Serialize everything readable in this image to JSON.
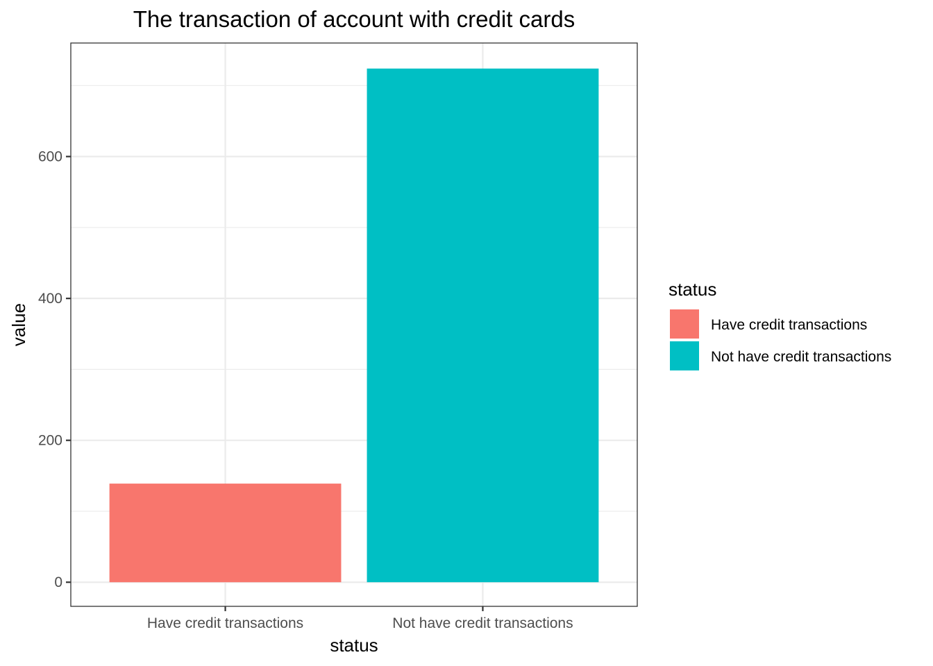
{
  "chart_data": {
    "type": "bar",
    "title": "The transaction of account with credit cards",
    "xlabel": "status",
    "ylabel": "value",
    "categories": [
      "Have credit transactions",
      "Not have credit transactions"
    ],
    "values": [
      139,
      724
    ],
    "colors": [
      "#F8766D",
      "#00BFC4"
    ],
    "ylim": [
      -34,
      760
    ],
    "yticks": [
      0,
      200,
      400,
      600
    ],
    "ytick_labels": [
      "0",
      "200",
      "400",
      "600"
    ],
    "grid": true,
    "legend": {
      "title": "status",
      "placement": "right",
      "entries": [
        "Have credit transactions",
        "Not have credit transactions"
      ]
    }
  }
}
